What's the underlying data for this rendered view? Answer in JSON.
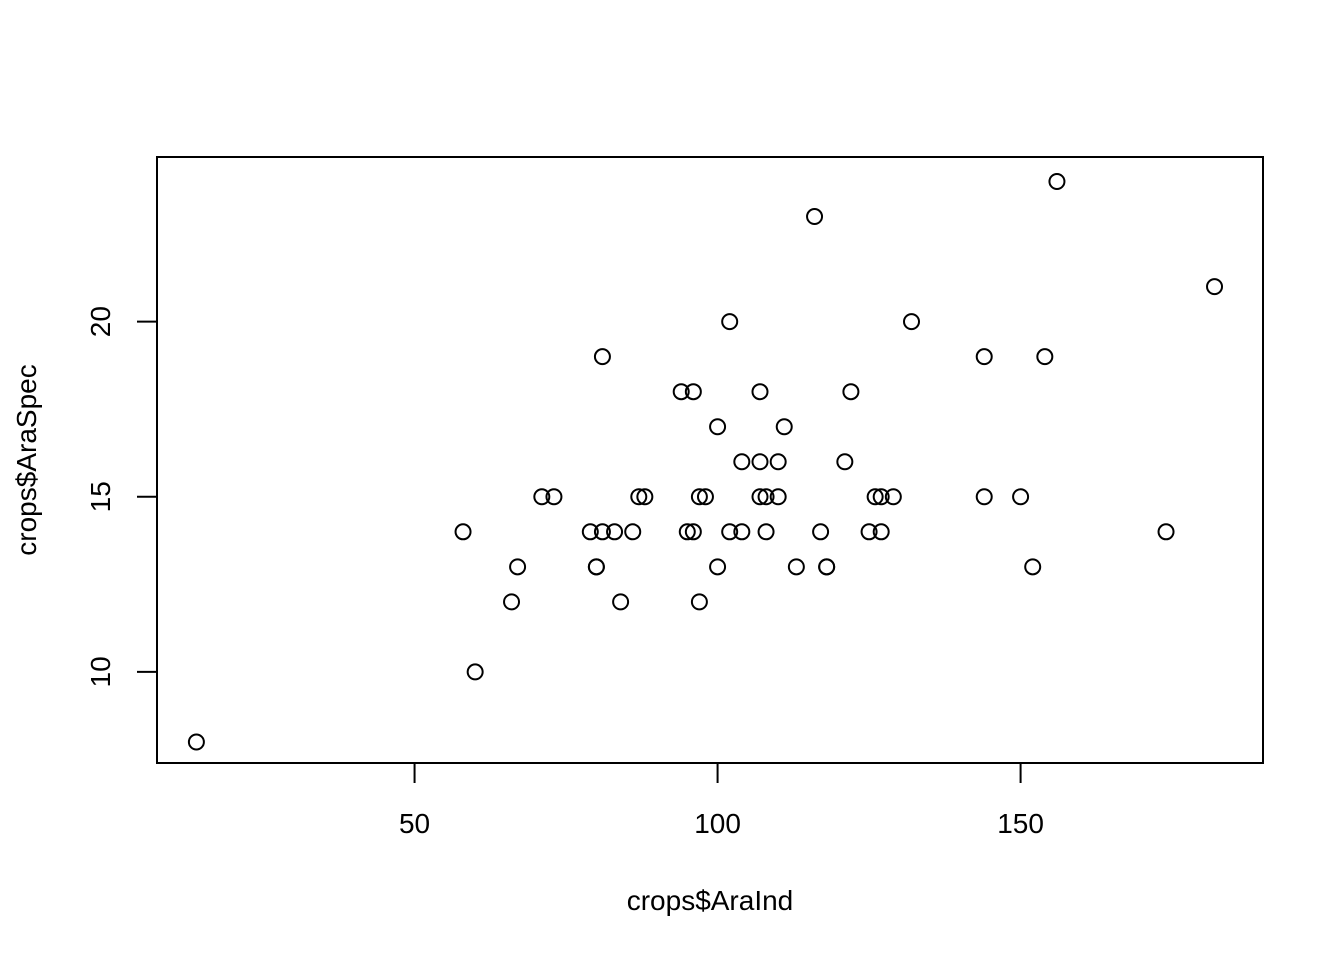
{
  "chart_data": {
    "type": "scatter",
    "title": "",
    "xlabel": "crops$AraInd",
    "ylabel": "crops$AraSpec",
    "xlim": [
      7.5,
      190
    ],
    "ylim": [
      7.4,
      24.7
    ],
    "x_ticks": [
      50,
      100,
      150
    ],
    "y_ticks": [
      10,
      15,
      20
    ],
    "x_tick_labels": [
      "50",
      "100",
      "150"
    ],
    "y_tick_labels": [
      "10",
      "15",
      "20"
    ],
    "grid": false,
    "legend": "none",
    "marker": "open-circle",
    "point_color": "#000000",
    "points": [
      [
        14,
        8
      ],
      [
        58,
        14
      ],
      [
        60,
        10
      ],
      [
        66,
        12
      ],
      [
        67,
        13
      ],
      [
        71,
        15
      ],
      [
        73,
        15
      ],
      [
        79,
        14
      ],
      [
        80,
        13
      ],
      [
        80,
        13
      ],
      [
        81,
        14
      ],
      [
        81,
        19
      ],
      [
        83,
        14
      ],
      [
        84,
        12
      ],
      [
        86,
        14
      ],
      [
        87,
        15
      ],
      [
        88,
        15
      ],
      [
        94,
        18
      ],
      [
        95,
        14
      ],
      [
        96,
        14
      ],
      [
        96,
        18
      ],
      [
        97,
        15
      ],
      [
        97,
        12
      ],
      [
        98,
        15
      ],
      [
        100,
        17
      ],
      [
        100,
        13
      ],
      [
        102,
        20
      ],
      [
        102,
        14
      ],
      [
        104,
        16
      ],
      [
        104,
        14
      ],
      [
        107,
        18
      ],
      [
        107,
        16
      ],
      [
        107,
        15
      ],
      [
        108,
        15
      ],
      [
        108,
        14
      ],
      [
        110,
        16
      ],
      [
        110,
        15
      ],
      [
        111,
        17
      ],
      [
        113,
        13
      ],
      [
        116,
        23
      ],
      [
        117,
        14
      ],
      [
        118,
        13
      ],
      [
        118,
        13
      ],
      [
        121,
        16
      ],
      [
        122,
        18
      ],
      [
        125,
        14
      ],
      [
        126,
        15
      ],
      [
        127,
        15
      ],
      [
        127,
        14
      ],
      [
        129,
        15
      ],
      [
        132,
        20
      ],
      [
        144,
        19
      ],
      [
        144,
        15
      ],
      [
        150,
        15
      ],
      [
        152,
        13
      ],
      [
        154,
        19
      ],
      [
        156,
        24
      ],
      [
        174,
        14
      ],
      [
        182,
        21
      ]
    ]
  }
}
